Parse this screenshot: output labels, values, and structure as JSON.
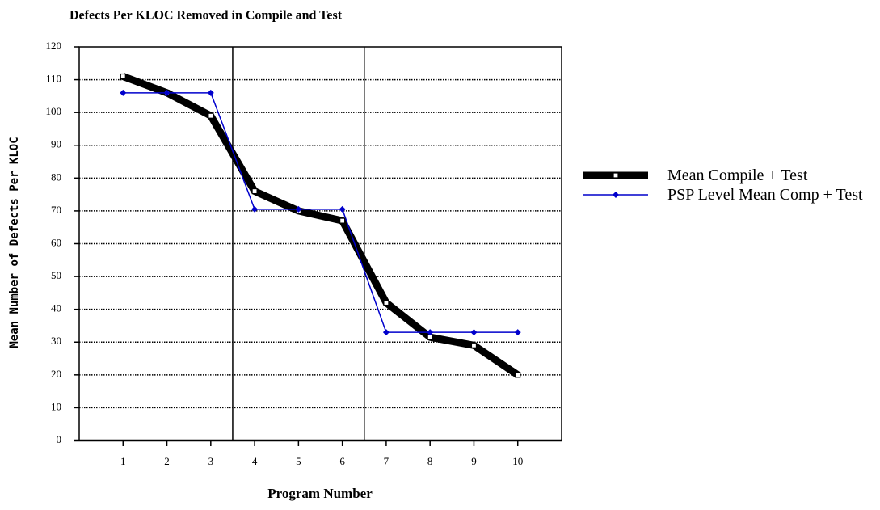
{
  "chart_data": {
    "type": "line",
    "title": "Defects Per KLOC Removed in Compile and Test",
    "x_label": "Program Number",
    "y_label": "Mean Number of Defects Per KLOC",
    "x": [
      1,
      2,
      3,
      4,
      5,
      6,
      7,
      8,
      9,
      10
    ],
    "series": [
      {
        "name": "Mean Compile + Test",
        "color": "#000000",
        "values": [
          111,
          106,
          99,
          76,
          70,
          67,
          42,
          31.5,
          29,
          20
        ]
      },
      {
        "name": "PSP Level Mean Comp + Test",
        "color": "#0000cc",
        "values": [
          106,
          106,
          106,
          70.5,
          70.5,
          70.5,
          33,
          33,
          33,
          33
        ]
      }
    ],
    "xlim": [
      0,
      11
    ],
    "xticks": [
      1,
      2,
      3,
      4,
      5,
      6,
      7,
      8,
      9,
      10
    ],
    "ylim": [
      0,
      120
    ],
    "yticks": [
      0,
      10,
      20,
      30,
      40,
      50,
      60,
      70,
      80,
      90,
      100,
      110,
      120
    ],
    "dividers": [
      3.5,
      6.5
    ],
    "grid": true,
    "legend": "right"
  }
}
